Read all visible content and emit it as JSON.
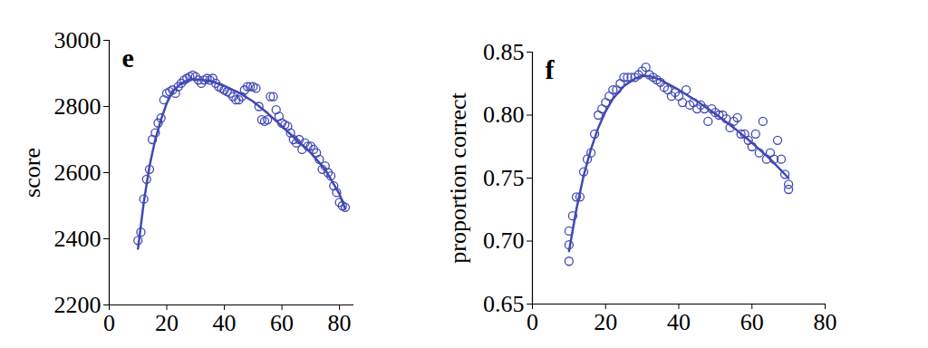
{
  "chart_data": [
    {
      "type": "scatter",
      "title": "e",
      "ylabel": "score",
      "xlim": [
        0,
        85
      ],
      "ylim": [
        2200,
        3000
      ],
      "xticks": [
        0,
        20,
        40,
        60,
        80
      ],
      "yticks": [
        2200,
        2400,
        2600,
        2800,
        3000
      ],
      "series": [
        {
          "type": "scatter",
          "marker": "circle",
          "color": "#4148b4",
          "x": [
            10,
            11,
            12,
            13,
            14,
            15,
            16,
            17,
            18,
            19,
            20,
            21,
            22,
            23,
            24,
            25,
            26,
            27,
            28,
            29,
            30,
            31,
            32,
            33,
            34,
            35,
            36,
            37,
            38,
            39,
            40,
            41,
            42,
            43,
            44,
            45,
            46,
            47,
            48,
            49,
            50,
            51,
            52,
            53,
            54,
            55,
            56,
            57,
            58,
            59,
            60,
            61,
            62,
            63,
            64,
            65,
            66,
            67,
            68,
            69,
            70,
            71,
            72,
            73,
            74,
            75,
            76,
            77,
            78,
            79,
            80,
            81,
            82
          ],
          "values": [
            2395,
            2420,
            2520,
            2580,
            2610,
            2700,
            2720,
            2750,
            2765,
            2820,
            2840,
            2845,
            2850,
            2840,
            2860,
            2870,
            2880,
            2885,
            2890,
            2895,
            2890,
            2880,
            2870,
            2880,
            2885,
            2880,
            2885,
            2870,
            2860,
            2855,
            2850,
            2845,
            2840,
            2830,
            2820,
            2820,
            2830,
            2850,
            2860,
            2860,
            2860,
            2855,
            2800,
            2760,
            2755,
            2760,
            2830,
            2830,
            2790,
            2770,
            2750,
            2745,
            2740,
            2720,
            2700,
            2690,
            2700,
            2670,
            2690,
            2680,
            2680,
            2670,
            2660,
            2640,
            2610,
            2620,
            2600,
            2590,
            2560,
            2540,
            2510,
            2500,
            2495
          ]
        },
        {
          "type": "line",
          "line_style": "solid",
          "color": "#4148b4",
          "x": [
            10,
            12,
            14,
            16,
            18,
            20,
            22,
            25,
            28,
            30,
            35,
            40,
            45,
            50,
            55,
            60,
            65,
            70,
            75,
            80,
            82
          ],
          "values": [
            2370,
            2510,
            2620,
            2700,
            2760,
            2810,
            2845,
            2870,
            2882,
            2882,
            2878,
            2862,
            2842,
            2815,
            2780,
            2740,
            2700,
            2660,
            2610,
            2535,
            2490
          ]
        }
      ]
    },
    {
      "type": "scatter",
      "title": "f",
      "ylabel": "proportion correct",
      "xlim": [
        0,
        80
      ],
      "ylim": [
        0.65,
        0.85
      ],
      "xticks": [
        0,
        20,
        40,
        60,
        80
      ],
      "yticks": [
        0.65,
        {
          "value": 0.7,
          "label": "0.70"
        },
        0.75,
        {
          "value": 0.8,
          "label": "0.80"
        },
        0.85
      ],
      "series": [
        {
          "type": "scatter",
          "marker": "circle",
          "color": "#4148b4",
          "x": [
            10,
            10,
            10,
            11,
            12,
            13,
            14,
            15,
            16,
            17,
            18,
            19,
            20,
            21,
            22,
            23,
            24,
            25,
            26,
            27,
            28,
            29,
            30,
            31,
            32,
            33,
            34,
            35,
            36,
            37,
            38,
            39,
            40,
            41,
            42,
            43,
            44,
            45,
            46,
            47,
            48,
            49,
            50,
            51,
            52,
            53,
            54,
            55,
            56,
            57,
            58,
            59,
            60,
            61,
            62,
            63,
            64,
            65,
            66,
            67,
            68,
            69,
            70,
            70
          ],
          "values": [
            0.708,
            0.697,
            0.684,
            0.72,
            0.735,
            0.735,
            0.755,
            0.765,
            0.77,
            0.785,
            0.8,
            0.805,
            0.81,
            0.815,
            0.82,
            0.82,
            0.825,
            0.83,
            0.83,
            0.83,
            0.83,
            0.832,
            0.835,
            0.838,
            0.832,
            0.83,
            0.828,
            0.826,
            0.822,
            0.82,
            0.815,
            0.818,
            0.815,
            0.81,
            0.82,
            0.808,
            0.81,
            0.805,
            0.808,
            0.805,
            0.795,
            0.805,
            0.802,
            0.8,
            0.8,
            0.797,
            0.79,
            0.795,
            0.798,
            0.785,
            0.785,
            0.78,
            0.775,
            0.785,
            0.77,
            0.795,
            0.765,
            0.77,
            0.765,
            0.78,
            0.765,
            0.753,
            0.745,
            0.741
          ]
        },
        {
          "type": "line",
          "line_style": "solid",
          "color": "#4148b4",
          "x": [
            10,
            12,
            14,
            16,
            18,
            20,
            22,
            25,
            28,
            30,
            32,
            35,
            40,
            45,
            50,
            55,
            60,
            65,
            70
          ],
          "values": [
            0.692,
            0.725,
            0.752,
            0.773,
            0.79,
            0.803,
            0.813,
            0.823,
            0.829,
            0.831,
            0.831,
            0.828,
            0.82,
            0.811,
            0.801,
            0.79,
            0.778,
            0.765,
            0.75
          ]
        }
      ]
    }
  ]
}
